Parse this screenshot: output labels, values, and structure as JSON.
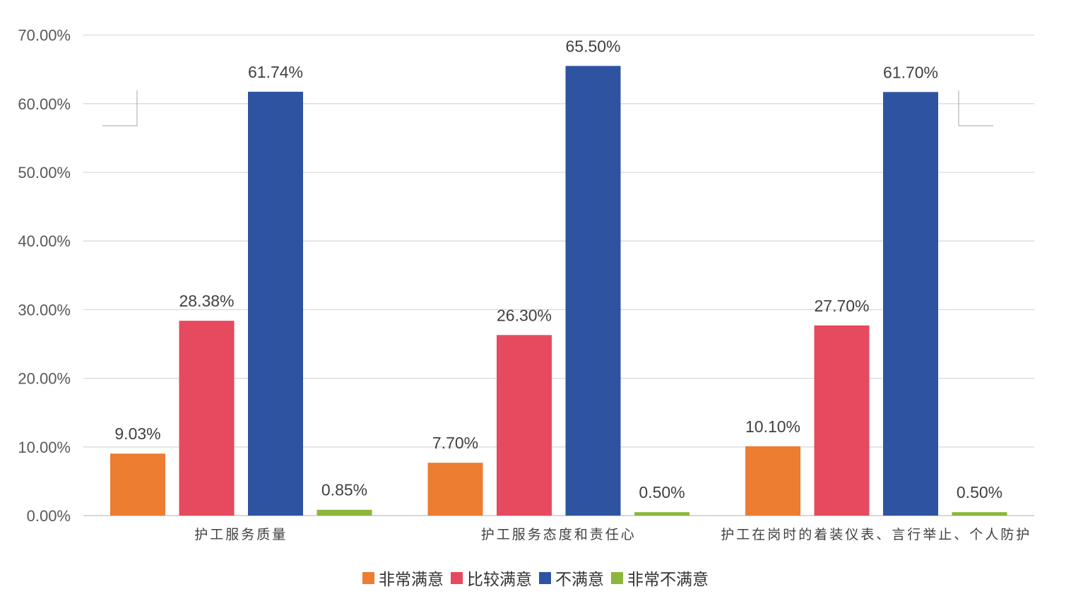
{
  "chart_data": {
    "type": "bar",
    "categories": [
      "护工服务质量",
      "护工服务态度和责任心",
      "护工在岗时的着装仪表、言行举止、个人防护"
    ],
    "series": [
      {
        "name": "非常满意",
        "color": "#ED7D31",
        "values": [
          9.03,
          7.7,
          10.1
        ],
        "labels": [
          "9.03%",
          "7.70%",
          "10.10%"
        ]
      },
      {
        "name": "比较满意",
        "color": "#E64A5E",
        "values": [
          28.38,
          26.3,
          27.7
        ],
        "labels": [
          "28.38%",
          "26.30%",
          "27.70%"
        ]
      },
      {
        "name": "不满意",
        "color": "#2E54A1",
        "values": [
          61.74,
          65.5,
          61.7
        ],
        "labels": [
          "61.74%",
          "65.50%",
          "61.70%"
        ]
      },
      {
        "name": "非常不满意",
        "color": "#8DB73C",
        "values": [
          0.85,
          0.5,
          0.5
        ],
        "labels": [
          "0.85%",
          "0.50%",
          "0.50%"
        ]
      }
    ],
    "y_ticks": [
      "0.00%",
      "10.00%",
      "20.00%",
      "30.00%",
      "40.00%",
      "50.00%",
      "60.00%",
      "70.00%"
    ],
    "ylim": [
      0,
      70
    ],
    "grid": true,
    "legend_position": "bottom"
  }
}
